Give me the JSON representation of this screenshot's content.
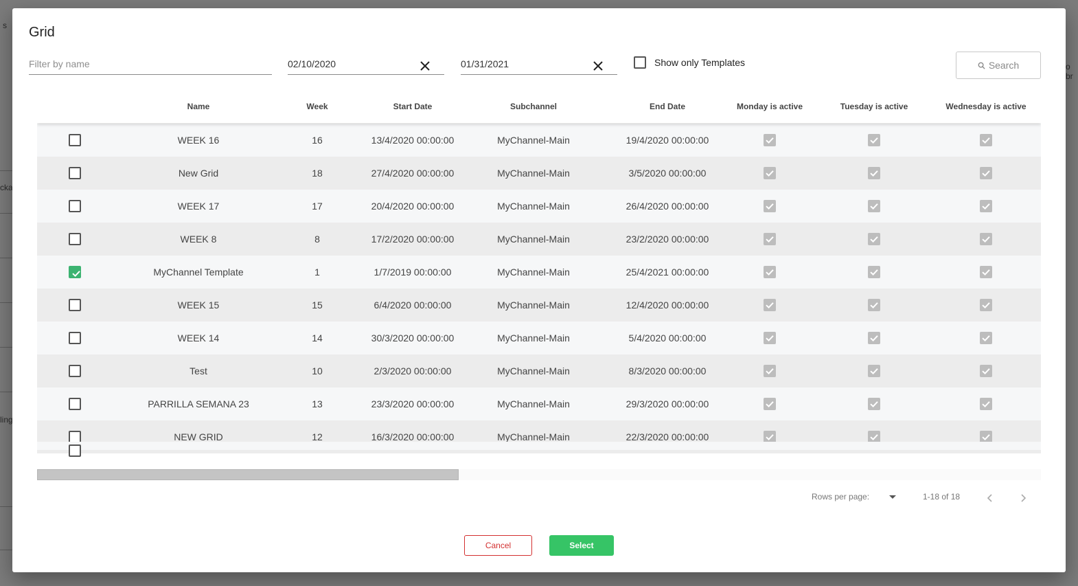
{
  "background": {
    "fragments": [
      "s",
      "cka",
      "ling",
      "o br"
    ]
  },
  "modal": {
    "title": "Grid",
    "filters": {
      "name_placeholder": "Filter by name",
      "name_value": "",
      "start_date": "02/10/2020",
      "end_date": "01/31/2021",
      "templates_label": "Show only Templates",
      "templates_checked": false,
      "search_label": "Search"
    },
    "table": {
      "columns": [
        "Name",
        "Week",
        "Start Date",
        "Subchannel",
        "End Date",
        "Monday is active",
        "Tuesday is active",
        "Wednesday is active"
      ],
      "rows": [
        {
          "selected": false,
          "name": "WEEK 16",
          "week": "16",
          "start": "13/4/2020 00:00:00",
          "subchannel": "MyChannel-Main",
          "end": "19/4/2020 00:00:00",
          "mon": true,
          "tue": true,
          "wed": true
        },
        {
          "selected": false,
          "name": "New Grid",
          "week": "18",
          "start": "27/4/2020 00:00:00",
          "subchannel": "MyChannel-Main",
          "end": "3/5/2020 00:00:00",
          "mon": true,
          "tue": true,
          "wed": true
        },
        {
          "selected": false,
          "name": "WEEK 17",
          "week": "17",
          "start": "20/4/2020 00:00:00",
          "subchannel": "MyChannel-Main",
          "end": "26/4/2020 00:00:00",
          "mon": true,
          "tue": true,
          "wed": true
        },
        {
          "selected": false,
          "name": "WEEK 8",
          "week": "8",
          "start": "17/2/2020 00:00:00",
          "subchannel": "MyChannel-Main",
          "end": "23/2/2020 00:00:00",
          "mon": true,
          "tue": true,
          "wed": true
        },
        {
          "selected": true,
          "name": "MyChannel Template",
          "week": "1",
          "start": "1/7/2019 00:00:00",
          "subchannel": "MyChannel-Main",
          "end": "25/4/2021 00:00:00",
          "mon": true,
          "tue": true,
          "wed": true
        },
        {
          "selected": false,
          "name": "WEEK 15",
          "week": "15",
          "start": "6/4/2020 00:00:00",
          "subchannel": "MyChannel-Main",
          "end": "12/4/2020 00:00:00",
          "mon": true,
          "tue": true,
          "wed": true
        },
        {
          "selected": false,
          "name": "WEEK 14",
          "week": "14",
          "start": "30/3/2020 00:00:00",
          "subchannel": "MyChannel-Main",
          "end": "5/4/2020 00:00:00",
          "mon": true,
          "tue": true,
          "wed": true
        },
        {
          "selected": false,
          "name": "Test",
          "week": "10",
          "start": "2/3/2020 00:00:00",
          "subchannel": "MyChannel-Main",
          "end": "8/3/2020 00:00:00",
          "mon": true,
          "tue": true,
          "wed": true
        },
        {
          "selected": false,
          "name": "PARRILLA SEMANA 23",
          "week": "13",
          "start": "23/3/2020 00:00:00",
          "subchannel": "MyChannel-Main",
          "end": "29/3/2020 00:00:00",
          "mon": true,
          "tue": true,
          "wed": true
        },
        {
          "selected": false,
          "name": "NEW GRID",
          "week": "12",
          "start": "16/3/2020 00:00:00",
          "subchannel": "MyChannel-Main",
          "end": "22/3/2020 00:00:00",
          "mon": true,
          "tue": true,
          "wed": true
        }
      ]
    },
    "pagination": {
      "rows_per_page_label": "Rows per page:",
      "range": "1-18 of 18"
    },
    "actions": {
      "cancel": "Cancel",
      "select": "Select"
    },
    "colors": {
      "accent_green": "#36c466",
      "cancel_red": "#d32f2f",
      "row_checked": "#3cb371"
    }
  }
}
